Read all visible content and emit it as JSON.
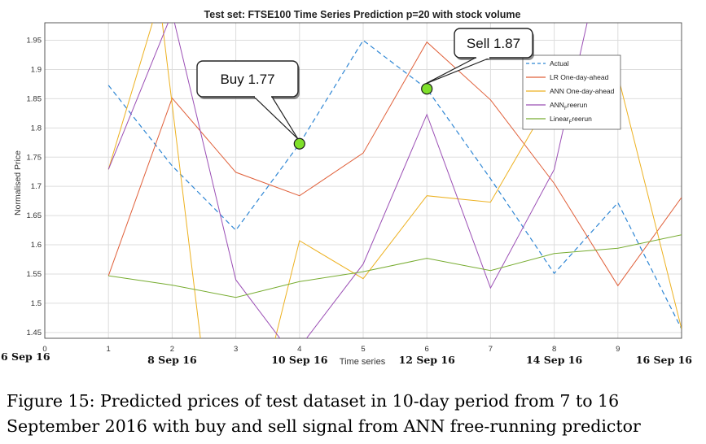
{
  "chart_data": {
    "type": "line",
    "title": "Test set: FTSE100 Time Series Prediction p=20 with stock volume",
    "xlabel": "Time series",
    "ylabel": "Normalised Price",
    "xlim": [
      0,
      10
    ],
    "ylim": [
      1.44,
      1.98
    ],
    "x_ticks": [
      "0",
      "1",
      "2",
      "3",
      "4",
      "5",
      "6",
      "7",
      "8",
      "9"
    ],
    "y_ticks": [
      "1.45",
      "1.5",
      "1.55",
      "1.6",
      "1.65",
      "1.7",
      "1.75",
      "1.8",
      "1.85",
      "1.9",
      "1.95"
    ],
    "date_labels": [
      {
        "x": 0,
        "text": "6 Sep 16"
      },
      {
        "x": 2,
        "text": "8 Sep 16"
      },
      {
        "x": 4,
        "text": "10 Sep 16"
      },
      {
        "x": 6,
        "text": "12 Sep 16"
      },
      {
        "x": 8,
        "text": "14 Sep 16"
      },
      {
        "x": 10,
        "text": "16 Sep 16"
      }
    ],
    "grid": true,
    "legend_position": "top-right",
    "series": [
      {
        "name": "Actual",
        "color": "#2e86d4",
        "dash": true,
        "points": [
          [
            1,
            1.873
          ],
          [
            2,
            1.735
          ],
          [
            3,
            1.625
          ],
          [
            4,
            1.773
          ],
          [
            5,
            1.95
          ],
          [
            6,
            1.867
          ],
          [
            7,
            1.713
          ],
          [
            8,
            1.551
          ],
          [
            9,
            1.672
          ],
          [
            10,
            1.456
          ]
        ]
      },
      {
        "name": "LR One-day-ahead",
        "color": "#e0603a",
        "dash": false,
        "points": [
          [
            1,
            1.547
          ],
          [
            2,
            1.851
          ],
          [
            3,
            1.724
          ],
          [
            4,
            1.684
          ],
          [
            5,
            1.757
          ],
          [
            6,
            1.947
          ],
          [
            7,
            1.848
          ],
          [
            8,
            1.705
          ],
          [
            9,
            1.53
          ],
          [
            10,
            1.681
          ]
        ]
      },
      {
        "name": "ANN One-day-ahead",
        "color": "#edb120",
        "dash": false,
        "points": [
          [
            1,
            1.729
          ],
          [
            1.8,
            2.02
          ],
          [
            2.6,
            1.3
          ],
          [
            3.3,
            1.3
          ],
          [
            4,
            1.607
          ],
          [
            5,
            1.542
          ],
          [
            6,
            1.684
          ],
          [
            7,
            1.673
          ],
          [
            8,
            1.861
          ],
          [
            9,
            1.89
          ],
          [
            10,
            1.456
          ]
        ]
      },
      {
        "name": "ANN_F reerun",
        "label_main": "ANN",
        "label_sub": "F",
        "label_tail": "reerun",
        "color": "#9b4fb5",
        "dash": false,
        "points": [
          [
            1,
            1.729
          ],
          [
            2,
            1.997
          ],
          [
            3,
            1.54
          ],
          [
            3.9,
            1.41
          ],
          [
            5,
            1.567
          ],
          [
            6,
            1.823
          ],
          [
            7,
            1.526
          ],
          [
            8,
            1.729
          ],
          [
            8.6,
            2.02
          ]
        ]
      },
      {
        "name": "Linear_F reerun",
        "label_main": "Linear",
        "label_sub": "F",
        "label_tail": "reerun",
        "color": "#77ac30",
        "dash": false,
        "points": [
          [
            1,
            1.547
          ],
          [
            2,
            1.531
          ],
          [
            3,
            1.51
          ],
          [
            4,
            1.537
          ],
          [
            5,
            1.554
          ],
          [
            6,
            1.577
          ],
          [
            7,
            1.556
          ],
          [
            8,
            1.585
          ],
          [
            9,
            1.594
          ],
          [
            10,
            1.617
          ]
        ]
      }
    ],
    "annotations": [
      {
        "text": "Buy 1.77",
        "x": 4,
        "y": 1.773
      },
      {
        "text": "Sell 1.87",
        "x": 6,
        "y": 1.867
      }
    ]
  },
  "caption": {
    "line1": "Figure 15:  Predicted prices of test dataset in 10-day period from 7 to 16",
    "line2": "September 2016 with buy and sell signal from ANN free-running predictor"
  }
}
